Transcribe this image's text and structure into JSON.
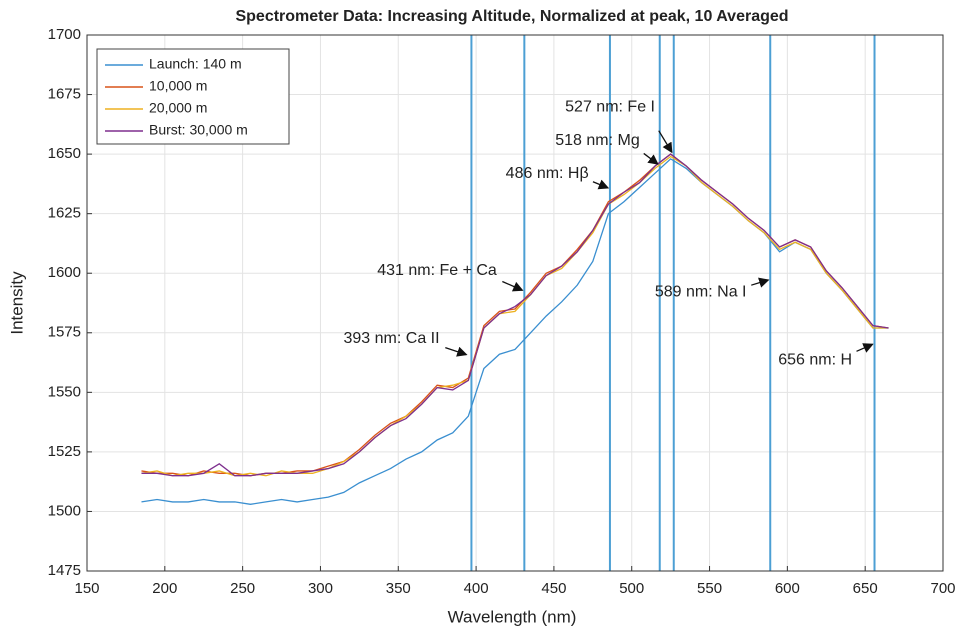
{
  "chart_data": {
    "type": "line",
    "title": "Spectrometer Data: Increasing Altitude, Normalized at peak, 10 Averaged",
    "xlabel": "Wavelength (nm)",
    "ylabel": "Intensity",
    "xlim": [
      150,
      700
    ],
    "ylim": [
      1475,
      1700
    ],
    "xticks": [
      150,
      200,
      250,
      300,
      350,
      400,
      450,
      500,
      550,
      600,
      650,
      700
    ],
    "yticks": [
      1475,
      1500,
      1525,
      1550,
      1575,
      1600,
      1625,
      1650,
      1675,
      1700
    ],
    "grid": true,
    "legend": "upper left",
    "x": [
      185,
      195,
      205,
      215,
      225,
      235,
      245,
      255,
      265,
      275,
      285,
      295,
      305,
      315,
      325,
      335,
      345,
      355,
      365,
      375,
      385,
      395,
      405,
      415,
      425,
      435,
      445,
      455,
      465,
      475,
      485,
      495,
      505,
      515,
      525,
      535,
      545,
      555,
      565,
      575,
      585,
      595,
      605,
      615,
      625,
      635,
      645,
      655,
      665
    ],
    "series": [
      {
        "name": "Launch: 140 m",
        "color": "#3a8fd0",
        "values": [
          1504,
          1505,
          1504,
          1504,
          1505,
          1504,
          1504,
          1503,
          1504,
          1505,
          1504,
          1505,
          1506,
          1508,
          1512,
          1515,
          1518,
          1522,
          1525,
          1530,
          1533,
          1540,
          1560,
          1566,
          1568,
          1575,
          1582,
          1588,
          1595,
          1605,
          1625,
          1630,
          1636,
          1642,
          1648,
          1644,
          1638,
          1633,
          1628,
          1622,
          1617,
          1609,
          1613,
          1610,
          1600,
          1593,
          1585,
          1577,
          1577
        ]
      },
      {
        "name": "10,000 m",
        "color": "#d95319",
        "values": [
          1517,
          1516,
          1516,
          1515,
          1517,
          1516,
          1516,
          1515,
          1516,
          1516,
          1517,
          1517,
          1519,
          1521,
          1526,
          1532,
          1537,
          1540,
          1546,
          1553,
          1552,
          1556,
          1578,
          1584,
          1585,
          1592,
          1600,
          1603,
          1610,
          1618,
          1630,
          1634,
          1639,
          1645,
          1650,
          1645,
          1639,
          1634,
          1629,
          1623,
          1618,
          1611,
          1614,
          1611,
          1601,
          1594,
          1586,
          1578,
          1577
        ]
      },
      {
        "name": "20,000 m",
        "color": "#edb120",
        "values": [
          1516,
          1517,
          1515,
          1516,
          1516,
          1517,
          1515,
          1516,
          1515,
          1517,
          1516,
          1516,
          1518,
          1521,
          1525,
          1531,
          1536,
          1540,
          1545,
          1552,
          1553,
          1555,
          1577,
          1583,
          1584,
          1591,
          1599,
          1602,
          1609,
          1617,
          1629,
          1633,
          1638,
          1644,
          1649,
          1645,
          1638,
          1633,
          1628,
          1622,
          1617,
          1610,
          1613,
          1610,
          1600,
          1593,
          1585,
          1577,
          1577
        ]
      },
      {
        "name": "Burst: 30,000 m",
        "color": "#7e2f8e",
        "values": [
          1516,
          1516,
          1515,
          1515,
          1516,
          1520,
          1515,
          1515,
          1516,
          1516,
          1516,
          1517,
          1518,
          1520,
          1525,
          1531,
          1536,
          1539,
          1545,
          1552,
          1551,
          1555,
          1577,
          1583,
          1586,
          1591,
          1599,
          1603,
          1609,
          1618,
          1629,
          1634,
          1638,
          1645,
          1650,
          1645,
          1639,
          1634,
          1629,
          1623,
          1618,
          1611,
          1614,
          1611,
          1601,
          1594,
          1586,
          1578,
          1577
        ]
      }
    ],
    "vlines": {
      "color": "#4c9fd4",
      "x": [
        397,
        431,
        486,
        518,
        527,
        589,
        656
      ]
    },
    "annotations": [
      {
        "text": "527 nm: Fe I",
        "xy": [
          527,
          1650
        ]
      },
      {
        "text": "518 nm: Mg",
        "xy": [
          518,
          1645
        ]
      },
      {
        "text": "486 nm: Hβ",
        "xy": [
          486,
          1635
        ]
      },
      {
        "text": "431 nm: Fe + Ca",
        "xy": [
          431,
          1592
        ]
      },
      {
        "text": "393 nm: Ca II",
        "xy": [
          395,
          1565
        ]
      },
      {
        "text": "589 nm: Na I",
        "xy": [
          589,
          1598
        ]
      },
      {
        "text": "656 nm: H",
        "xy": [
          656,
          1571
        ]
      }
    ]
  }
}
